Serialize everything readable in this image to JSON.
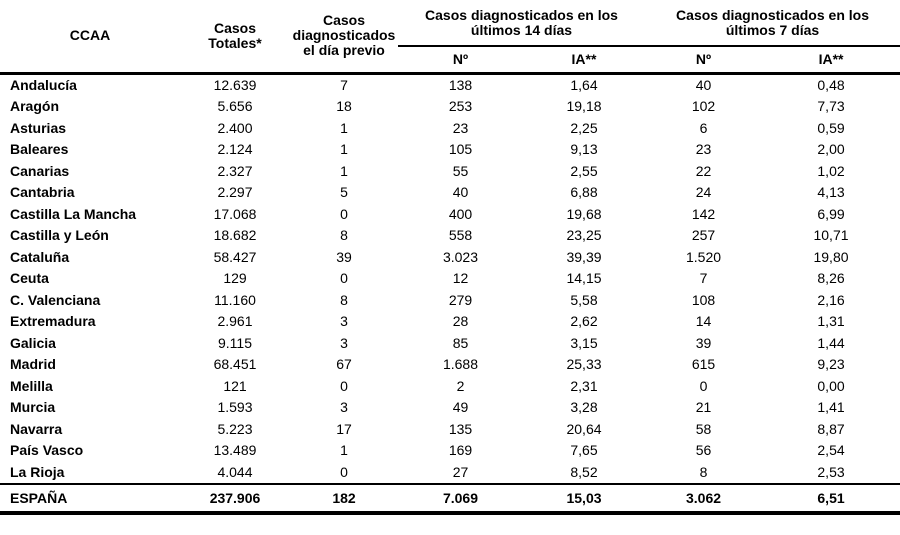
{
  "colors": {
    "background": "#ffffff",
    "text": "#000000",
    "border": "#000000"
  },
  "table": {
    "col_headers": {
      "ccaa": "CCAA",
      "totales": "Casos Totales*",
      "previo": "Casos diagnosticados el día previo",
      "group14": "Casos diagnosticados en los últimos 14 días",
      "group7": "Casos diagnosticados en los últimos 7 días",
      "n14": "Nº",
      "ia14": "IA**",
      "n7": "Nº",
      "ia7": "IA**"
    },
    "rows": [
      {
        "ccaa": "Andalucía",
        "totales": "12.639",
        "previo": "7",
        "n14": "138",
        "ia14": "1,64",
        "n7": "40",
        "ia7": "0,48"
      },
      {
        "ccaa": "Aragón",
        "totales": "5.656",
        "previo": "18",
        "n14": "253",
        "ia14": "19,18",
        "n7": "102",
        "ia7": "7,73"
      },
      {
        "ccaa": "Asturias",
        "totales": "2.400",
        "previo": "1",
        "n14": "23",
        "ia14": "2,25",
        "n7": "6",
        "ia7": "0,59"
      },
      {
        "ccaa": "Baleares",
        "totales": "2.124",
        "previo": "1",
        "n14": "105",
        "ia14": "9,13",
        "n7": "23",
        "ia7": "2,00"
      },
      {
        "ccaa": "Canarias",
        "totales": "2.327",
        "previo": "1",
        "n14": "55",
        "ia14": "2,55",
        "n7": "22",
        "ia7": "1,02"
      },
      {
        "ccaa": "Cantabria",
        "totales": "2.297",
        "previo": "5",
        "n14": "40",
        "ia14": "6,88",
        "n7": "24",
        "ia7": "4,13"
      },
      {
        "ccaa": "Castilla La Mancha",
        "totales": "17.068",
        "previo": "0",
        "n14": "400",
        "ia14": "19,68",
        "n7": "142",
        "ia7": "6,99"
      },
      {
        "ccaa": "Castilla y León",
        "totales": "18.682",
        "previo": "8",
        "n14": "558",
        "ia14": "23,25",
        "n7": "257",
        "ia7": "10,71"
      },
      {
        "ccaa": "Cataluña",
        "totales": "58.427",
        "previo": "39",
        "n14": "3.023",
        "ia14": "39,39",
        "n7": "1.520",
        "ia7": "19,80"
      },
      {
        "ccaa": "Ceuta",
        "totales": "129",
        "previo": "0",
        "n14": "12",
        "ia14": "14,15",
        "n7": "7",
        "ia7": "8,26"
      },
      {
        "ccaa": "C. Valenciana",
        "totales": "11.160",
        "previo": "8",
        "n14": "279",
        "ia14": "5,58",
        "n7": "108",
        "ia7": "2,16"
      },
      {
        "ccaa": "Extremadura",
        "totales": "2.961",
        "previo": "3",
        "n14": "28",
        "ia14": "2,62",
        "n7": "14",
        "ia7": "1,31"
      },
      {
        "ccaa": "Galicia",
        "totales": "9.115",
        "previo": "3",
        "n14": "85",
        "ia14": "3,15",
        "n7": "39",
        "ia7": "1,44"
      },
      {
        "ccaa": "Madrid",
        "totales": "68.451",
        "previo": "67",
        "n14": "1.688",
        "ia14": "25,33",
        "n7": "615",
        "ia7": "9,23"
      },
      {
        "ccaa": "Melilla",
        "totales": "121",
        "previo": "0",
        "n14": "2",
        "ia14": "2,31",
        "n7": "0",
        "ia7": "0,00"
      },
      {
        "ccaa": "Murcia",
        "totales": "1.593",
        "previo": "3",
        "n14": "49",
        "ia14": "3,28",
        "n7": "21",
        "ia7": "1,41"
      },
      {
        "ccaa": "Navarra",
        "totales": "5.223",
        "previo": "17",
        "n14": "135",
        "ia14": "20,64",
        "n7": "58",
        "ia7": "8,87"
      },
      {
        "ccaa": "País Vasco",
        "totales": "13.489",
        "previo": "1",
        "n14": "169",
        "ia14": "7,65",
        "n7": "56",
        "ia7": "2,54"
      },
      {
        "ccaa": "La Rioja",
        "totales": "4.044",
        "previo": "0",
        "n14": "27",
        "ia14": "8,52",
        "n7": "8",
        "ia7": "2,53"
      }
    ],
    "total": {
      "ccaa": "ESPAÑA",
      "totales": "237.906",
      "previo": "182",
      "n14": "7.069",
      "ia14": "15,03",
      "n7": "3.062",
      "ia7": "6,51"
    }
  }
}
